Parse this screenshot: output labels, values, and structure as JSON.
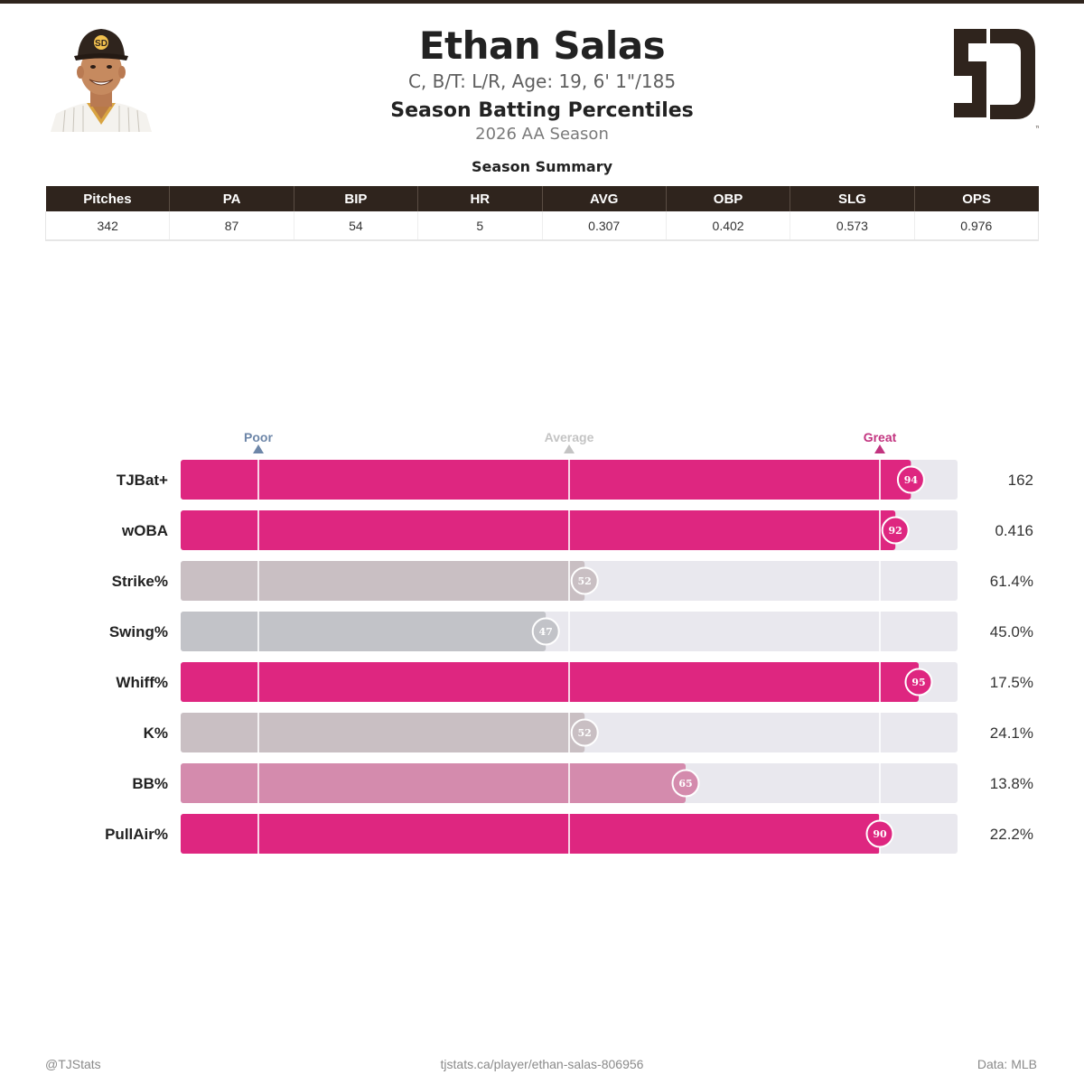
{
  "player": {
    "name": "Ethan Salas",
    "bio": "C, B/T: L/R, Age: 19, 6' 1\"/185",
    "cap_logo_text": "SD"
  },
  "report": {
    "title": "Season Batting Percentiles",
    "subtitle": "2026 AA Season"
  },
  "team_logo": {
    "text": "SD",
    "trademark": "™",
    "color": "#2f241d"
  },
  "summary": {
    "heading": "Season Summary",
    "columns": [
      "Pitches",
      "PA",
      "BIP",
      "HR",
      "AVG",
      "OBP",
      "SLG",
      "OPS"
    ],
    "rows": [
      [
        "342",
        "87",
        "54",
        "5",
        "0.307",
        "0.402",
        "0.573",
        "0.976"
      ]
    ]
  },
  "chart_data": {
    "type": "bar",
    "orientation": "horizontal",
    "xlim": [
      0,
      100
    ],
    "markers": [
      {
        "label": "Poor",
        "percentile": 10,
        "color": "#6d86a8"
      },
      {
        "label": "Average",
        "percentile": 50,
        "color": "#c4c4c4"
      },
      {
        "label": "Great",
        "percentile": 90,
        "color": "#c2337f"
      }
    ],
    "categories": [
      "TJBat+",
      "wOBA",
      "Strike%",
      "Swing%",
      "Whiff%",
      "K%",
      "BB%",
      "PullAir%"
    ],
    "percentiles": [
      94,
      92,
      52,
      47,
      95,
      52,
      65,
      90
    ],
    "stat_values": [
      "162",
      "0.416",
      "61.4%",
      "45.0%",
      "17.5%",
      "24.1%",
      "13.8%",
      "22.2%"
    ],
    "bar_colors": [
      "#de2680",
      "#de2680",
      "#c9bfc3",
      "#c2c3c8",
      "#de2680",
      "#c9bfc3",
      "#d48bad",
      "#de2680"
    ],
    "track_color": "#e9e8ee"
  },
  "footer": {
    "left": "@TJStats",
    "center": "tjstats.ca/player/ethan-salas-806956",
    "right": "Data: MLB"
  }
}
